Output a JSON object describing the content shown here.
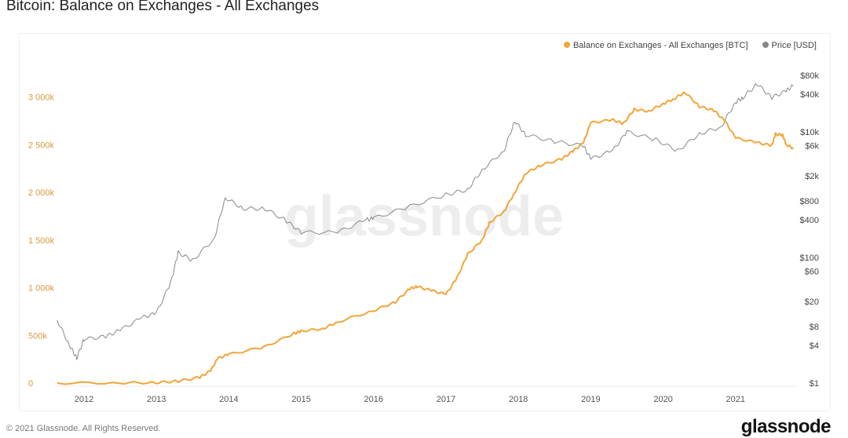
{
  "title": "Bitcoin: Balance on Exchanges - All Exchanges",
  "footer": "© 2021 Glassnode. All Rights Reserved.",
  "logo": "glassnode",
  "watermark": "glassnode",
  "chart_data": {
    "type": "line",
    "title": "Bitcoin: Balance on Exchanges - All Exchanges",
    "legend_placement": "top-right",
    "colors": {
      "balance": "#f2a53a",
      "price": "#888888"
    },
    "x_ticks": [
      "2012",
      "2013",
      "2014",
      "2015",
      "2016",
      "2017",
      "2018",
      "2019",
      "2020",
      "2021"
    ],
    "xlim": [
      2011.63,
      2021.8
    ],
    "y_left": {
      "ticks": [
        "0",
        "500k",
        "1 000k",
        "1 500k",
        "2 000k",
        "2 500k",
        "3 000k"
      ],
      "tick_values": [
        0,
        500,
        1000,
        1500,
        2000,
        2500,
        3000
      ],
      "unit": "k BTC",
      "range": [
        0,
        3300
      ]
    },
    "y_right": {
      "scale": "log",
      "ticks": [
        "$1",
        "$4",
        "$8",
        "$20",
        "$60",
        "$100",
        "$400",
        "$800",
        "$2k",
        "$6k",
        "$10k",
        "$40k",
        "$80k"
      ],
      "tick_values": [
        1,
        4,
        8,
        20,
        60,
        100,
        400,
        800,
        2000,
        6000,
        10000,
        40000,
        80000
      ]
    },
    "series": [
      {
        "name": "Balance on Exchanges - All Exchanges [BTC]",
        "axis": "left",
        "x": [
          2011.63,
          2012.5,
          2013.0,
          2013.3,
          2013.6,
          2013.75,
          2013.85,
          2014.0,
          2014.5,
          2014.9,
          2015.0,
          2015.3,
          2015.5,
          2016.0,
          2016.3,
          2016.5,
          2016.6,
          2016.8,
          2017.0,
          2017.15,
          2017.3,
          2017.5,
          2017.6,
          2017.8,
          2017.95,
          2018.1,
          2018.3,
          2018.6,
          2018.75,
          2018.9,
          2019.0,
          2019.3,
          2019.45,
          2019.6,
          2019.8,
          2020.0,
          2020.15,
          2020.3,
          2020.5,
          2020.7,
          2020.85,
          2021.0,
          2021.3,
          2021.5,
          2021.55,
          2021.65,
          2021.7,
          2021.8
        ],
        "values": [
          0,
          2,
          5,
          20,
          60,
          130,
          260,
          300,
          380,
          520,
          545,
          570,
          640,
          760,
          850,
          990,
          1010,
          970,
          930,
          1100,
          1350,
          1500,
          1680,
          1800,
          2000,
          2200,
          2280,
          2350,
          2430,
          2520,
          2730,
          2760,
          2720,
          2870,
          2850,
          2930,
          2980,
          3050,
          2900,
          2860,
          2750,
          2570,
          2520,
          2490,
          2610,
          2600,
          2500,
          2460
        ]
      },
      {
        "name": "Price [USD]",
        "axis": "right",
        "x": [
          2011.63,
          2011.8,
          2011.9,
          2012.0,
          2012.3,
          2012.5,
          2012.8,
          2013.0,
          2013.2,
          2013.3,
          2013.5,
          2013.8,
          2013.95,
          2014.2,
          2014.5,
          2014.8,
          2015.0,
          2015.5,
          2015.9,
          2016.0,
          2016.5,
          2017.0,
          2017.3,
          2017.5,
          2017.8,
          2017.95,
          2018.1,
          2018.5,
          2018.9,
          2019.0,
          2019.3,
          2019.5,
          2019.9,
          2020.2,
          2020.5,
          2020.8,
          2021.0,
          2021.1,
          2021.3,
          2021.5,
          2021.7,
          2021.8
        ],
        "values": [
          10,
          4,
          2.5,
          5,
          5.5,
          7,
          11,
          13,
          40,
          120,
          90,
          200,
          900,
          600,
          600,
          380,
          250,
          250,
          400,
          420,
          650,
          1000,
          1200,
          2500,
          5000,
          15000,
          9000,
          7000,
          6000,
          3700,
          5000,
          10000,
          7500,
          5000,
          9300,
          12000,
          30000,
          35000,
          58000,
          35000,
          45000,
          55000
        ]
      }
    ]
  }
}
